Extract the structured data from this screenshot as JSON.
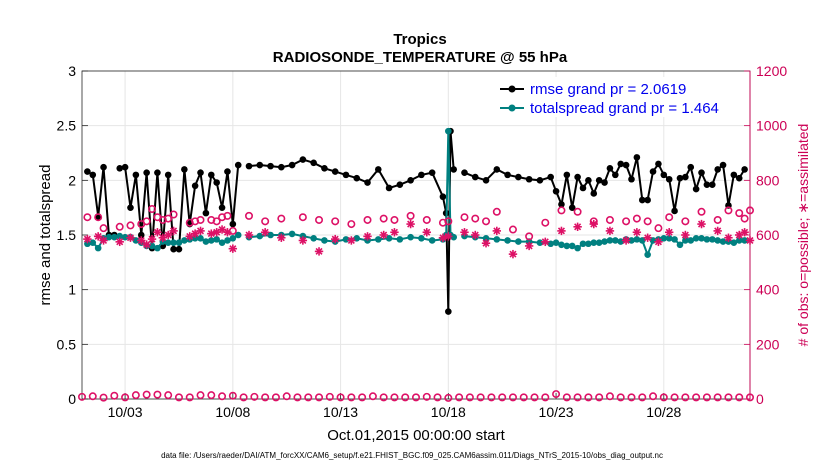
{
  "chart_data": {
    "type": "line",
    "title": "Tropics",
    "subtitle": "RADIOSONDE_TEMPERATURE @ 55 hPa",
    "xlabel": "Oct.01,2015 00:00:00 start",
    "ylabel": "rmse and totalspread",
    "ylabel_right": "# of obs: o=possible; ∗=assimilated",
    "footnote": "data file: /Users/raeder/DAI/ATM_forcXX/CAM6_setup/f.e21.FHIST_BGC.f09_025.CAM6assim.011/Diags_NTrS_2015-10/obs_diag_output.nc",
    "xlim": [
      1.0,
      32.0
    ],
    "ylim": [
      0,
      3
    ],
    "ylim_right": [
      0,
      1200
    ],
    "x_ticks": [
      3,
      8,
      13,
      18,
      23,
      28
    ],
    "x_tick_labels": [
      "10/03",
      "10/08",
      "10/13",
      "10/18",
      "10/23",
      "10/28"
    ],
    "y_ticks": [
      0,
      0.5,
      1,
      1.5,
      2,
      2.5,
      3
    ],
    "y_tick_labels": [
      "0",
      "0.5",
      "1",
      "1.5",
      "2",
      "2.5",
      "3"
    ],
    "y_right_ticks": [
      0,
      200,
      400,
      600,
      800,
      1000,
      1200
    ],
    "y_right_tick_labels": [
      "0",
      "200",
      "400",
      "600",
      "800",
      "1000",
      "1200"
    ],
    "legend": [
      {
        "label": "rmse grand pr = 2.0619",
        "color": "#000000"
      },
      {
        "label": "totalspread grand pr = 1.464",
        "color": "#008080"
      }
    ],
    "colors": {
      "rmse": "#000000",
      "spread": "#008080",
      "obs": "#dd1166",
      "axis_right": "#cc0055"
    },
    "series": [
      {
        "name": "rmse",
        "axis": "left",
        "segments": [
          {
            "x": [
              1.25,
              1.5,
              1.75,
              2.0,
              2.25,
              2.5
            ],
            "y": [
              2.08,
              2.05,
              1.67,
              2.12,
              1.5,
              1.5
            ]
          },
          {
            "x": [
              2.75,
              3.0,
              3.25,
              3.5,
              3.75,
              4.0,
              4.25,
              4.5,
              4.75,
              5.0,
              5.25,
              5.5,
              5.75,
              6.0,
              6.25,
              6.5,
              6.75,
              7.0,
              7.25,
              7.5,
              7.75,
              8.0,
              8.25
            ],
            "y": [
              2.11,
              2.12,
              1.75,
              2.05,
              1.5,
              2.07,
              1.38,
              2.07,
              1.4,
              2.05,
              1.37,
              1.37,
              2.1,
              1.6,
              1.95,
              2.07,
              1.7,
              2.05,
              1.98,
              1.75,
              2.08,
              1.6,
              2.14
            ]
          },
          {
            "x": [
              8.75,
              9.25,
              9.75,
              10.25,
              10.75,
              11.25,
              11.75,
              12.25,
              12.75,
              13.25,
              13.75,
              14.25,
              14.75,
              15.25,
              15.75,
              16.25,
              16.75,
              17.25,
              17.75,
              17.9,
              18.0,
              18.1,
              18.25
            ],
            "y": [
              2.13,
              2.14,
              2.13,
              2.12,
              2.14,
              2.19,
              2.16,
              2.11,
              2.08,
              2.05,
              2.02,
              1.98,
              2.1,
              1.93,
              1.96,
              2.0,
              2.05,
              2.07,
              1.85,
              1.7,
              0.8,
              2.45,
              2.1
            ]
          },
          {
            "x": [
              18.75,
              19.25,
              19.75,
              20.25,
              20.75,
              21.25,
              21.75,
              22.25,
              22.75,
              23.0,
              23.25,
              23.5,
              23.75,
              24.0,
              24.25,
              24.5,
              24.75,
              25.0,
              25.25,
              25.5,
              25.75,
              26.0,
              26.25,
              26.5,
              26.75,
              27.0,
              27.25,
              27.5,
              27.75,
              28.0,
              28.25,
              28.5,
              28.75,
              29.0,
              29.25,
              29.5,
              29.75,
              30.0,
              30.25,
              30.5,
              30.75,
              31.0,
              31.25,
              31.5,
              31.75
            ],
            "y": [
              2.07,
              2.03,
              2.0,
              2.1,
              2.05,
              2.03,
              2.01,
              2.0,
              2.03,
              1.9,
              1.78,
              2.05,
              1.75,
              2.03,
              1.93,
              2.0,
              1.88,
              2.0,
              1.98,
              2.11,
              2.05,
              2.15,
              2.14,
              2.01,
              2.21,
              1.82,
              1.82,
              2.08,
              2.15,
              2.05,
              2.01,
              1.72,
              2.02,
              2.03,
              2.12,
              1.92,
              2.07,
              1.96,
              1.96,
              2.1,
              2.14,
              1.77,
              2.05,
              2.02,
              2.1
            ]
          }
        ]
      },
      {
        "name": "totalspread",
        "axis": "left",
        "segments": [
          {
            "x": [
              1.25,
              1.5,
              1.75,
              2.0,
              2.25,
              2.5
            ],
            "y": [
              1.42,
              1.43,
              1.38,
              1.47,
              1.48,
              1.48
            ]
          },
          {
            "x": [
              2.75,
              3.0,
              3.25,
              3.5,
              3.75,
              4.0,
              4.25,
              4.5,
              4.75,
              5.0,
              5.25,
              5.5,
              5.75,
              6.0,
              6.25,
              6.5,
              6.75,
              7.0,
              7.25,
              7.5,
              7.75,
              8.0,
              8.25
            ],
            "y": [
              1.49,
              1.48,
              1.48,
              1.45,
              1.43,
              1.4,
              1.4,
              1.38,
              1.44,
              1.43,
              1.43,
              1.43,
              1.45,
              1.46,
              1.47,
              1.47,
              1.44,
              1.45,
              1.46,
              1.43,
              1.45,
              1.47,
              1.5
            ]
          },
          {
            "x": [
              8.75,
              9.25,
              9.75,
              10.25,
              10.75,
              11.25,
              11.75,
              12.25,
              12.75,
              13.25,
              13.75,
              14.25,
              14.75,
              15.25,
              15.75,
              16.25,
              16.75,
              17.25,
              17.75,
              17.9,
              18.0,
              18.1,
              18.25
            ],
            "y": [
              1.48,
              1.49,
              1.5,
              1.5,
              1.51,
              1.49,
              1.47,
              1.45,
              1.44,
              1.46,
              1.47,
              1.45,
              1.46,
              1.47,
              1.46,
              1.48,
              1.47,
              1.45,
              1.46,
              1.5,
              2.45,
              1.5,
              1.48
            ]
          },
          {
            "x": [
              18.75,
              19.25,
              19.75,
              20.25,
              20.75,
              21.25,
              21.75,
              22.25,
              22.75,
              23.0,
              23.25,
              23.5,
              23.75,
              24.0,
              24.25,
              24.5,
              24.75,
              25.0,
              25.25,
              25.5,
              25.75,
              26.0,
              26.25,
              26.5,
              26.75,
              27.0,
              27.25,
              27.5,
              27.75,
              28.0,
              28.25,
              28.5,
              28.75,
              29.0,
              29.25,
              29.5,
              29.75,
              30.0,
              30.25,
              30.5,
              30.75,
              31.0,
              31.25,
              31.5,
              31.75
            ],
            "y": [
              1.49,
              1.48,
              1.47,
              1.46,
              1.45,
              1.44,
              1.44,
              1.43,
              1.42,
              1.43,
              1.41,
              1.4,
              1.4,
              1.38,
              1.42,
              1.42,
              1.43,
              1.43,
              1.44,
              1.45,
              1.45,
              1.44,
              1.46,
              1.45,
              1.46,
              1.45,
              1.32,
              1.45,
              1.46,
              1.47,
              1.47,
              1.46,
              1.41,
              1.45,
              1.45,
              1.47,
              1.47,
              1.46,
              1.46,
              1.45,
              1.44,
              1.44,
              1.43,
              1.45,
              1.45
            ]
          }
        ]
      },
      {
        "name": "obs possible",
        "axis": "right",
        "marker": "circle",
        "x": [
          1.25,
          1.75,
          2.0,
          2.75,
          3.25,
          3.75,
          4.0,
          4.25,
          4.5,
          4.75,
          5.0,
          5.25,
          6.0,
          6.25,
          6.5,
          7.0,
          7.25,
          7.5,
          7.75,
          8.0,
          8.75,
          9.5,
          10.25,
          11.25,
          12.0,
          12.75,
          13.5,
          14.25,
          15.0,
          15.5,
          16.25,
          17.0,
          17.75,
          18.0,
          18.75,
          19.25,
          19.75,
          20.25,
          21.0,
          21.75,
          22.5,
          23.25,
          24.0,
          24.75,
          25.5,
          26.25,
          26.75,
          27.25,
          27.75,
          28.25,
          29.0,
          29.75,
          30.5,
          31.0,
          31.5,
          31.75,
          32.0
        ],
        "y": [
          665,
          665,
          625,
          630,
          635,
          640,
          650,
          695,
          665,
          655,
          660,
          675,
          645,
          650,
          655,
          655,
          650,
          665,
          670,
          615,
          670,
          650,
          660,
          665,
          655,
          650,
          640,
          655,
          660,
          655,
          670,
          655,
          645,
          650,
          665,
          660,
          650,
          685,
          620,
          595,
          645,
          690,
          685,
          650,
          655,
          650,
          660,
          650,
          625,
          665,
          650,
          685,
          655,
          690,
          680,
          660,
          690
        ]
      },
      {
        "name": "obs assimilated",
        "axis": "right",
        "marker": "asterisk",
        "x": [
          1.25,
          1.75,
          2.0,
          2.75,
          3.25,
          3.75,
          4.0,
          4.25,
          4.5,
          4.75,
          5.0,
          5.25,
          6.0,
          6.25,
          6.5,
          7.0,
          7.25,
          7.5,
          7.75,
          8.0,
          8.75,
          9.5,
          10.25,
          11.25,
          12.0,
          12.75,
          13.5,
          14.25,
          15.0,
          15.5,
          16.25,
          17.0,
          17.75,
          18.0,
          18.75,
          19.25,
          19.75,
          20.25,
          21.0,
          21.75,
          22.5,
          23.25,
          24.0,
          24.75,
          25.5,
          26.25,
          26.75,
          27.25,
          27.75,
          28.25,
          29.0,
          29.75,
          30.5,
          31.0,
          31.5,
          31.75,
          32.0
        ],
        "y": [
          585,
          595,
          580,
          575,
          590,
          580,
          565,
          585,
          610,
          590,
          600,
          615,
          595,
          605,
          615,
          605,
          610,
          620,
          610,
          550,
          600,
          610,
          590,
          580,
          540,
          585,
          580,
          595,
          600,
          610,
          640,
          610,
          590,
          595,
          610,
          600,
          570,
          615,
          530,
          560,
          575,
          615,
          630,
          640,
          615,
          580,
          610,
          590,
          575,
          610,
          600,
          640,
          615,
          590,
          600,
          610,
          580
        ]
      },
      {
        "name": "obs near zero possible",
        "axis": "right",
        "marker": "circle",
        "x": [
          1.0,
          1.5,
          2.0,
          2.5,
          3.0,
          3.5,
          4.0,
          4.5,
          5.0,
          5.5,
          6.0,
          6.5,
          7.0,
          7.5,
          8.0,
          8.5,
          9.0,
          9.5,
          10.0,
          10.5,
          11.0,
          11.5,
          12.0,
          12.5,
          13.0,
          13.5,
          14.0,
          14.5,
          15.0,
          15.5,
          16.0,
          16.5,
          17.0,
          17.5,
          18.0,
          18.5,
          19.0,
          19.5,
          20.0,
          20.5,
          21.0,
          21.5,
          22.0,
          22.5,
          23.0,
          23.5,
          24.0,
          24.5,
          25.0,
          25.5,
          26.0,
          26.5,
          27.0,
          27.5,
          28.0,
          28.5,
          29.0,
          29.5,
          30.0,
          30.5,
          31.0,
          31.5,
          32.0
        ],
        "y": [
          8,
          10,
          5,
          12,
          6,
          14,
          16,
          16,
          14,
          6,
          6,
          14,
          14,
          10,
          12,
          6,
          8,
          6,
          6,
          10,
          6,
          6,
          6,
          8,
          6,
          6,
          6,
          10,
          6,
          6,
          6,
          6,
          8,
          6,
          4,
          6,
          6,
          6,
          6,
          6,
          6,
          6,
          6,
          6,
          18,
          6,
          6,
          6,
          6,
          10,
          6,
          6,
          6,
          10,
          6,
          6,
          6,
          6,
          6,
          6,
          6,
          6,
          6
        ]
      }
    ]
  }
}
